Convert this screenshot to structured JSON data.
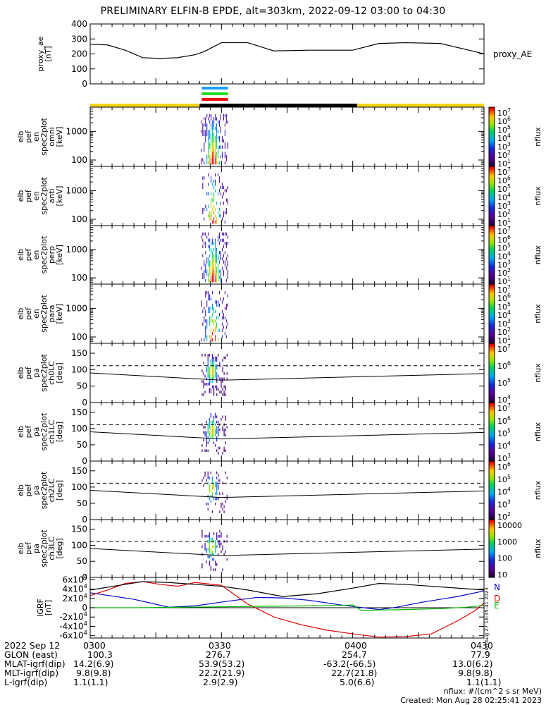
{
  "title": "PRELIMINARY ELFIN-B EPDE, alt=303km, 2022-09-12 03:00 to 04:30",
  "colors": {
    "axis": "#000000",
    "ae_line": "#000000",
    "orbit_bar_yellow": "#f5d31a",
    "orbit_bar_black": "#000000",
    "science_zone_blue": "#1fa0ff",
    "science_zone_green": "#22dd22",
    "science_zone_red": "#ee1111",
    "igrf_N": "#0000cc",
    "igrf_D": "#dd0000",
    "igrf_E": "#00bb00"
  },
  "side_labels": {
    "proxy_ae_right": "proxy_AE",
    "nflux": "nflux",
    "stamp": "Sun Aug 27 18:35:41 2023",
    "igrf_N": "N",
    "igrf_D": "D",
    "igrf_E": "E"
  },
  "chart_data": [
    {
      "type": "line",
      "panel": "proxy_ae",
      "ylabel": [
        "proxy_ae",
        "[nT]"
      ],
      "ylim": [
        0,
        400
      ],
      "yticks": [
        "400",
        "300",
        "200",
        "100",
        "0"
      ],
      "x_minutes": [
        0,
        4,
        8,
        12,
        16,
        20,
        24,
        26,
        30,
        36,
        42,
        50,
        60,
        66,
        72,
        80,
        88,
        90
      ],
      "values": [
        265,
        260,
        225,
        175,
        170,
        175,
        195,
        215,
        275,
        275,
        220,
        225,
        225,
        270,
        275,
        270,
        215,
        200
      ]
    },
    {
      "type": "heatmap",
      "panel": "spec_omni",
      "ylabel": [
        "elb",
        "pef",
        "en",
        "spec2plot",
        "omni",
        "[keV]"
      ],
      "yscale": "log",
      "ylim": [
        60,
        7000
      ],
      "yticks": [
        "1000",
        "100"
      ],
      "x_window_minutes": [
        25,
        32
      ],
      "cbar_ticks": [
        "10^7",
        "10^6",
        "10^5",
        "10^4",
        "10^3",
        "10^2",
        "10^1"
      ]
    },
    {
      "type": "heatmap",
      "panel": "spec_anti",
      "ylabel": [
        "elb",
        "pef",
        "en",
        "spec2plot",
        "anti",
        "[keV]"
      ],
      "yscale": "log",
      "ylim": [
        60,
        7000
      ],
      "yticks": [
        "1000",
        "100"
      ],
      "x_window_minutes": [
        25,
        32
      ],
      "cbar_ticks": [
        "10^7",
        "10^6",
        "10^5",
        "10^4",
        "10^3",
        "10^2",
        "10^1"
      ]
    },
    {
      "type": "heatmap",
      "panel": "spec_perp",
      "ylabel": [
        "elb",
        "pef",
        "en",
        "spec2plot",
        "perp",
        "[keV]"
      ],
      "yscale": "log",
      "ylim": [
        60,
        7000
      ],
      "yticks": [
        "1000",
        "100"
      ],
      "x_window_minutes": [
        25,
        32
      ],
      "cbar_ticks": [
        "10^7",
        "10^6",
        "10^5",
        "10^4",
        "10^3",
        "10^2",
        "10^1"
      ]
    },
    {
      "type": "heatmap",
      "panel": "spec_para",
      "ylabel": [
        "elb",
        "pef",
        "en",
        "spec2plot",
        "para",
        "[keV]"
      ],
      "yscale": "log",
      "ylim": [
        60,
        7000
      ],
      "yticks": [
        "1000",
        "100"
      ],
      "x_window_minutes": [
        25,
        32
      ],
      "cbar_ticks": [
        "10^7",
        "10^6",
        "10^5",
        "10^4",
        "10^3",
        "10^2",
        "10^1"
      ]
    },
    {
      "type": "heatmap",
      "panel": "pa_ch0",
      "ylabel": [
        "elb",
        "pef",
        "pa",
        "spec2plot",
        "ch0LC",
        "[deg]"
      ],
      "ylim": [
        0,
        180
      ],
      "yticks": [
        "150",
        "100",
        "50",
        "0"
      ],
      "loss_cone_deg": [
        90,
        68
      ],
      "anti_loss_cone_deg": [
        112,
        112
      ],
      "x_window_minutes": [
        25,
        32
      ],
      "cbar_ticks": [
        "10^7",
        "10^6",
        "10^5",
        "10^4"
      ]
    },
    {
      "type": "heatmap",
      "panel": "pa_ch1",
      "ylabel": [
        "elb",
        "pef",
        "pa",
        "spec2plot",
        "ch1LC",
        "[deg]"
      ],
      "ylim": [
        0,
        180
      ],
      "yticks": [
        "150",
        "100",
        "50",
        "0"
      ],
      "loss_cone_deg": [
        90,
        68
      ],
      "anti_loss_cone_deg": [
        112,
        112
      ],
      "x_window_minutes": [
        25,
        32
      ],
      "cbar_ticks": [
        "10^7",
        "10^6",
        "10^5",
        "10^4",
        "10^3"
      ]
    },
    {
      "type": "heatmap",
      "panel": "pa_ch2",
      "ylabel": [
        "elb",
        "pef",
        "pa",
        "spec2plot",
        "ch2LC",
        "[deg]"
      ],
      "ylim": [
        0,
        180
      ],
      "yticks": [
        "150",
        "100",
        "50",
        "0"
      ],
      "loss_cone_deg": [
        90,
        68
      ],
      "anti_loss_cone_deg": [
        112,
        112
      ],
      "x_window_minutes": [
        25,
        32
      ],
      "cbar_ticks": [
        "10^6",
        "10^5",
        "10^4",
        "10^3",
        "10^2"
      ]
    },
    {
      "type": "heatmap",
      "panel": "pa_ch3",
      "ylabel": [
        "elb",
        "pef",
        "pa",
        "spec2plot",
        "ch3LC",
        "[deg]"
      ],
      "ylim": [
        0,
        180
      ],
      "yticks": [
        "150",
        "100",
        "50",
        "0"
      ],
      "loss_cone_deg": [
        90,
        68
      ],
      "anti_loss_cone_deg": [
        112,
        112
      ],
      "x_window_minutes": [
        25,
        32
      ],
      "cbar_ticks": [
        "10000",
        "1000",
        "100",
        "10"
      ]
    },
    {
      "type": "line",
      "panel": "igrf",
      "ylabel": [
        "IGRF",
        "[nT]"
      ],
      "ylim": [
        -65000,
        65000
      ],
      "yticks": [
        "6x10^4",
        "4x10^4",
        "2x10^4",
        "0",
        "-2x10^4",
        "-4x10^4",
        "-6x10^4"
      ],
      "series": [
        {
          "name": "N",
          "x_minutes": [
            0,
            10,
            18,
            24,
            30,
            38,
            44,
            50,
            58,
            66,
            70,
            76,
            84,
            90
          ],
          "values": [
            32000,
            18000,
            1000,
            4000,
            12000,
            22000,
            21000,
            16000,
            5000,
            -4000,
            1000,
            12000,
            24000,
            36000
          ]
        },
        {
          "name": "D",
          "x_minutes": [
            0,
            4,
            8,
            12,
            16,
            20,
            24,
            30,
            36,
            42,
            48,
            54,
            60,
            66,
            72,
            78,
            84,
            88,
            90
          ],
          "values": [
            26000,
            38000,
            52000,
            56000,
            50000,
            46000,
            54000,
            48000,
            8000,
            -20000,
            -36000,
            -48000,
            -56000,
            -63000,
            -62000,
            -56000,
            -28000,
            -6000,
            10000
          ]
        },
        {
          "name": "E",
          "x_minutes": [
            0,
            5,
            10,
            20,
            30,
            40,
            50,
            58,
            60,
            62,
            66,
            72,
            80,
            86,
            90
          ],
          "values": [
            0,
            0,
            0,
            1000,
            2000,
            3000,
            4000,
            5000,
            6000,
            -6000,
            -5000,
            -4000,
            -2000,
            1000,
            5000
          ]
        },
        {
          "name": "total",
          "x_minutes": [
            0,
            8,
            12,
            18,
            24,
            30,
            36,
            44,
            52,
            60,
            66,
            72,
            78,
            84,
            90
          ],
          "values": [
            38000,
            50000,
            56000,
            54000,
            50000,
            46000,
            38000,
            24000,
            30000,
            42000,
            52000,
            50000,
            46000,
            42000,
            38000
          ]
        }
      ]
    }
  ],
  "x_axis_ticks": [
    "0300",
    "0330",
    "0400",
    "0430"
  ],
  "orbit_table": {
    "rows": [
      {
        "label": "2022 Sep 12",
        "vals": [
          "0300",
          "0330",
          "0400",
          "0430"
        ]
      },
      {
        "label": "GLON (east)",
        "vals": [
          "100.3",
          "276.7",
          "254.7",
          "77.9"
        ]
      },
      {
        "label": "MLAT-igrf(dip)",
        "vals": [
          "14.2(6.9)",
          "53.9(53.2)",
          "-63.2(-66.5)",
          "13.0(6.2)"
        ]
      },
      {
        "label": "MLT-igrf(dip)",
        "vals": [
          "9.8(9.8)",
          "22.2(21.9)",
          "22.7(21.8)",
          "9.8(9.8)"
        ]
      },
      {
        "label": "L-igrf(dip)",
        "vals": [
          "1.1(1.1)",
          "2.9(2.9)",
          "5.0(6.6)",
          "1.1(1.1)"
        ]
      }
    ]
  },
  "footer": {
    "units": "nflux: #/(cm^2 s sr MeV)",
    "created": "Created: Mon Aug 28 02:25:41 2023"
  }
}
